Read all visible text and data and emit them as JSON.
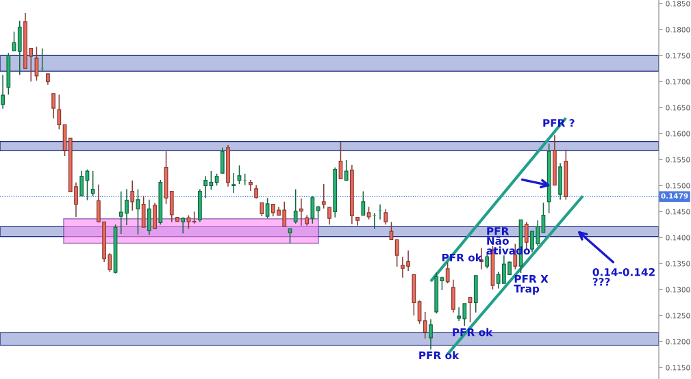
{
  "chart_data": {
    "type": "candlestick",
    "categories": [
      null,
      null,
      null,
      null,
      null,
      null,
      null,
      null,
      null,
      null,
      null,
      null,
      null,
      null,
      null,
      null,
      null,
      null,
      null,
      null,
      null,
      null,
      null,
      null,
      null,
      null,
      null,
      null,
      null,
      null,
      null,
      null,
      null,
      null,
      null,
      null,
      null,
      null,
      null,
      null,
      null,
      null,
      null,
      null,
      null,
      null,
      null,
      null,
      null,
      null,
      null,
      null,
      null,
      null,
      null,
      null,
      null,
      null,
      null,
      null,
      null,
      null,
      null,
      null,
      null,
      null,
      null,
      null,
      null,
      null,
      null,
      null,
      null,
      null,
      null,
      null,
      null,
      null,
      null,
      null,
      null,
      null,
      null,
      null,
      null,
      null,
      null,
      null,
      null,
      null,
      null,
      null,
      null,
      null,
      null,
      null,
      null,
      null,
      null,
      null,
      null,
      null,
      null,
      null,
      null,
      null,
      null,
      null,
      null,
      null,
      null,
      null,
      null,
      null,
      null,
      null,
      null
    ],
    "ohlc": [
      [
        0.1656,
        0.1713,
        0.1648,
        0.1674
      ],
      [
        0.1689,
        0.1755,
        0.1675,
        0.175
      ],
      [
        0.1759,
        0.1796,
        0.1759,
        0.1775
      ],
      [
        0.1758,
        0.1817,
        0.1713,
        0.1805
      ],
      [
        0.1815,
        0.1832,
        0.1725,
        0.1725
      ],
      [
        0.1764,
        0.1764,
        0.17,
        0.1749
      ],
      [
        0.1745,
        0.1767,
        0.1702,
        0.1711
      ],
      [
        0.1725,
        0.1764,
        0.1721,
        0.1725
      ],
      [
        0.1715,
        0.1715,
        0.1694,
        0.17
      ],
      [
        0.1677,
        0.1677,
        0.1629,
        0.1649
      ],
      [
        0.1646,
        0.1675,
        0.1608,
        0.1617
      ],
      [
        0.1617,
        0.1617,
        0.1557,
        0.1568
      ],
      [
        0.1591,
        0.1591,
        0.1488,
        0.1488
      ],
      [
        0.1498,
        0.1506,
        0.144,
        0.1464
      ],
      [
        0.148,
        0.1528,
        0.148,
        0.1518
      ],
      [
        0.151,
        0.1531,
        0.1472,
        0.1528
      ],
      [
        0.1485,
        0.1528,
        0.148,
        0.1493
      ],
      [
        0.1471,
        0.1502,
        0.1429,
        0.143
      ],
      [
        0.143,
        0.143,
        0.1353,
        0.1359
      ],
      [
        0.1367,
        0.137,
        0.1334,
        0.1338
      ],
      [
        0.1333,
        0.1425,
        0.1331,
        0.142
      ],
      [
        0.1441,
        0.1489,
        0.1407,
        0.1449
      ],
      [
        0.1447,
        0.1493,
        0.1424,
        0.1472
      ],
      [
        0.1489,
        0.151,
        0.1452,
        0.1469
      ],
      [
        0.1455,
        0.1493,
        0.1406,
        0.1473
      ],
      [
        0.1464,
        0.148,
        0.142,
        0.142
      ],
      [
        0.1413,
        0.1473,
        0.1405,
        0.1455
      ],
      [
        0.1462,
        0.1467,
        0.1417,
        0.1417
      ],
      [
        0.1429,
        0.1511,
        0.1425,
        0.1506
      ],
      [
        0.1535,
        0.1566,
        0.1465,
        0.1476
      ],
      [
        0.1489,
        0.1489,
        0.143,
        0.1444
      ],
      [
        0.1439,
        0.1439,
        0.1431,
        0.1431
      ],
      [
        0.143,
        0.1439,
        0.1408,
        0.1437
      ],
      [
        0.1438,
        0.1443,
        0.1417,
        0.143
      ],
      [
        0.1431,
        0.145,
        0.1427,
        0.143
      ],
      [
        0.1434,
        0.1493,
        0.143,
        0.1489
      ],
      [
        0.15,
        0.1518,
        0.1476,
        0.151
      ],
      [
        0.15,
        0.1528,
        0.1492,
        0.1506
      ],
      [
        0.1506,
        0.1523,
        0.15,
        0.1518
      ],
      [
        0.1524,
        0.1573,
        0.1523,
        0.1566
      ],
      [
        0.1573,
        0.1578,
        0.1498,
        0.1506
      ],
      [
        0.15,
        0.1524,
        0.1486,
        0.1502
      ],
      [
        0.151,
        0.1539,
        0.1503,
        0.1519
      ],
      [
        0.151,
        0.1523,
        0.1501,
        0.151
      ],
      [
        0.1506,
        0.1511,
        0.149,
        0.1502
      ],
      [
        0.1494,
        0.1501,
        0.1475,
        0.1477
      ],
      [
        0.1467,
        0.1467,
        0.1441,
        0.1446
      ],
      [
        0.1441,
        0.1476,
        0.1437,
        0.1465
      ],
      [
        0.1464,
        0.1464,
        0.1441,
        0.1448
      ],
      [
        0.1453,
        0.1459,
        0.1443,
        0.1443
      ],
      [
        0.1453,
        0.1469,
        0.1422,
        0.1422
      ],
      [
        0.1409,
        0.1417,
        0.1389,
        0.1417
      ],
      [
        0.143,
        0.1493,
        0.1427,
        0.1451
      ],
      [
        0.1455,
        0.1475,
        0.1423,
        0.1451
      ],
      [
        0.1438,
        0.1443,
        0.1423,
        0.1427
      ],
      [
        0.1437,
        0.148,
        0.1427,
        0.1477
      ],
      [
        0.1452,
        0.1461,
        0.1437,
        0.1459
      ],
      [
        0.1469,
        0.1503,
        0.1456,
        0.1464
      ],
      [
        0.1458,
        0.1458,
        0.1425,
        0.1437
      ],
      [
        0.145,
        0.1535,
        0.1439,
        0.1531
      ],
      [
        0.1547,
        0.1585,
        0.1513,
        0.1513
      ],
      [
        0.151,
        0.1549,
        0.151,
        0.1528
      ],
      [
        0.153,
        0.154,
        0.1426,
        0.1442
      ],
      [
        0.1439,
        0.1439,
        0.1423,
        0.1433
      ],
      [
        0.1443,
        0.1489,
        0.1443,
        0.1469
      ],
      [
        0.1448,
        0.1459,
        0.1435,
        0.144
      ],
      [
        0.1442,
        0.1447,
        0.1417,
        0.1442
      ],
      [
        0.1452,
        0.1464,
        0.1435,
        0.1452
      ],
      [
        0.1448,
        0.1455,
        0.1425,
        0.143
      ],
      [
        0.1412,
        0.143,
        0.1396,
        0.1396
      ],
      [
        0.1396,
        0.1396,
        0.1344,
        0.1366
      ],
      [
        0.1347,
        0.1363,
        0.1323,
        0.1341
      ],
      [
        0.1354,
        0.1375,
        0.1336,
        0.1345
      ],
      [
        0.1329,
        0.1329,
        0.125,
        0.1275
      ],
      [
        0.1277,
        0.1279,
        0.1234,
        0.124
      ],
      [
        0.124,
        0.1257,
        0.1206,
        0.1218
      ],
      [
        0.1207,
        0.1243,
        0.1185,
        0.1232
      ],
      [
        0.1257,
        0.1333,
        0.1254,
        0.1325
      ],
      [
        0.1317,
        0.1325,
        0.1299,
        0.1323
      ],
      [
        0.134,
        0.1352,
        0.1312,
        0.1315
      ],
      [
        0.1304,
        0.1319,
        0.1256,
        0.1262
      ],
      [
        0.1245,
        0.1266,
        0.124,
        0.1249
      ],
      [
        0.1244,
        0.1273,
        0.123,
        0.1273
      ],
      [
        0.1285,
        0.1286,
        0.1237,
        0.1275
      ],
      [
        0.1275,
        0.1327,
        0.1256,
        0.1327
      ],
      [
        0.1357,
        0.138,
        0.1339,
        0.1354
      ],
      [
        0.1345,
        0.1372,
        0.1341,
        0.1363
      ],
      [
        0.1375,
        0.1384,
        0.13,
        0.1308
      ],
      [
        0.1312,
        0.1334,
        0.1302,
        0.1329
      ],
      [
        0.1312,
        0.1366,
        0.1312,
        0.1349
      ],
      [
        0.1329,
        0.1354,
        0.1328,
        0.1353
      ],
      [
        0.1367,
        0.1388,
        0.1339,
        0.1345
      ],
      [
        0.1345,
        0.1434,
        0.1332,
        0.1434
      ],
      [
        0.1426,
        0.143,
        0.1376,
        0.1391
      ],
      [
        0.1378,
        0.1412,
        0.1372,
        0.1412
      ],
      [
        0.1388,
        0.1433,
        0.1384,
        0.1421
      ],
      [
        0.141,
        0.1467,
        0.141,
        0.1443
      ],
      [
        0.1469,
        0.1581,
        0.1447,
        0.1566
      ],
      [
        0.1568,
        0.1597,
        0.1501,
        0.1501
      ],
      [
        0.1483,
        0.1543,
        0.1473,
        0.1536
      ],
      [
        0.1547,
        0.1569,
        0.1473,
        0.1479
      ],
      null,
      null,
      null,
      null,
      null,
      null,
      null,
      null,
      null,
      null,
      null,
      null,
      null,
      null,
      null,
      null
    ],
    "colors": [
      "#26b574",
      "#26b574",
      "#26b574",
      "#26b574",
      "#ef6b5d",
      "#ef6b5d",
      "#ef6b5d",
      "#26b574",
      "#ef6b5d",
      "#ef6b5d",
      "#ef6b5d",
      "#ef6b5d",
      "#ef6b5d",
      "#ef6b5d",
      "#26b574",
      "#26b574",
      "#26b574",
      "#ef6b5d",
      "#ef6b5d",
      "#ef6b5d",
      "#26b574",
      "#26b574",
      "#26b574",
      "#ef6b5d",
      "#26b574",
      "#ef6b5d",
      "#26b574",
      "#ef6b5d",
      "#26b574",
      "#ef6b5d",
      "#ef6b5d",
      "#ef6b5d",
      "#26b574",
      "#ef6b5d",
      "#ef6b5d",
      "#26b574",
      "#26b574",
      "#26b574",
      "#26b574",
      "#26b574",
      "#ef6b5d",
      "#26b574",
      "#26b574",
      "#26b574",
      "#ef6b5d",
      "#ef6b5d",
      "#ef6b5d",
      "#26b574",
      "#ef6b5d",
      "#ef6b5d",
      "#ef6b5d",
      "#26b574",
      "#26b574",
      "#ef6b5d",
      "#ef6b5d",
      "#26b574",
      "#26b574",
      "#ef6b5d",
      "#ef6b5d",
      "#26b574",
      "#ef6b5d",
      "#26b574",
      "#ef6b5d",
      "#ef6b5d",
      "#26b574",
      "#ef6b5d",
      "#26b574",
      "#26b574",
      "#ef6b5d",
      "#ef6b5d",
      "#ef6b5d",
      "#ef6b5d",
      "#ef6b5d",
      "#ef6b5d",
      "#ef6b5d",
      "#ef6b5d",
      "#26b574",
      "#26b574",
      "#26b574",
      "#ef6b5d",
      "#ef6b5d",
      "#26b574",
      "#26b574",
      "#ef6b5d",
      "#26b574",
      "#ef6b5d",
      "#26b574",
      "#ef6b5d",
      "#26b574",
      "#26b574",
      "#26b574",
      "#ef6b5d",
      "#26b574",
      "#ef6b5d",
      "#26b574",
      "#26b574",
      "#26b574",
      "#26b574",
      "#ef6b5d",
      "#26b574",
      "#ef6b5d",
      null,
      null,
      null,
      null,
      null,
      null,
      null,
      null,
      null,
      null,
      null,
      null,
      null,
      null,
      null,
      null
    ],
    "series": [
      {
        "type": "line",
        "color": "#22a08a",
        "values": [
          null,
          null,
          null,
          null,
          null,
          null,
          null,
          null,
          null,
          null,
          null,
          null,
          null,
          null,
          null,
          null,
          null,
          null,
          null,
          null,
          null,
          null,
          null,
          null,
          null,
          null,
          null,
          null,
          null,
          null,
          null,
          null,
          null,
          null,
          null,
          null,
          null,
          null,
          null,
          null,
          null,
          null,
          null,
          null,
          null,
          null,
          null,
          null,
          null,
          null,
          null,
          null,
          null,
          null,
          null,
          null,
          null,
          null,
          null,
          null,
          null,
          null,
          null,
          null,
          null,
          null,
          null,
          null,
          null,
          null,
          null,
          null,
          null,
          null,
          null,
          null,
          0.1316,
          null,
          null,
          null,
          null,
          null,
          null,
          null,
          null,
          null,
          null,
          null,
          null,
          null,
          null,
          null,
          null,
          null,
          null,
          null,
          null,
          null,
          null,
          null,
          0.163,
          null,
          null,
          null,
          null,
          null,
          null,
          null,
          null,
          null,
          null,
          null,
          null,
          null,
          null,
          null,
          null
        ]
      },
      {
        "type": "line",
        "color": "#22a08a",
        "values": [
          null,
          null,
          null,
          null,
          null,
          null,
          null,
          null,
          null,
          null,
          null,
          null,
          null,
          null,
          null,
          null,
          null,
          null,
          null,
          null,
          null,
          null,
          null,
          null,
          null,
          null,
          null,
          null,
          null,
          null,
          null,
          null,
          null,
          null,
          null,
          null,
          null,
          null,
          null,
          null,
          null,
          null,
          null,
          null,
          null,
          null,
          null,
          null,
          null,
          null,
          null,
          null,
          null,
          null,
          null,
          null,
          null,
          null,
          null,
          null,
          null,
          null,
          null,
          null,
          null,
          null,
          null,
          null,
          null,
          null,
          null,
          null,
          null,
          null,
          null,
          null,
          null,
          null,
          null,
          0.1176,
          null,
          null,
          null,
          null,
          null,
          null,
          null,
          null,
          null,
          null,
          null,
          null,
          null,
          null,
          null,
          null,
          null,
          null,
          null,
          null,
          null,
          null,
          null,
          0.148,
          null,
          null,
          null,
          null,
          null,
          null,
          null,
          null,
          null,
          null,
          null,
          null,
          null
        ]
      }
    ],
    "ylim": [
      0.1128,
      0.1857
    ],
    "yticks": [
      {
        "value": 0.115,
        "label": "0.1150"
      },
      {
        "value": 0.12,
        "label": "0.1200"
      },
      {
        "value": 0.125,
        "label": "0.1250"
      },
      {
        "value": 0.13,
        "label": "0.1300"
      },
      {
        "value": 0.135,
        "label": "0.1350"
      },
      {
        "value": 0.14,
        "label": "0.1400"
      },
      {
        "value": 0.145,
        "label": "0.1450"
      },
      {
        "value": 0.15,
        "label": "0.1500"
      },
      {
        "value": 0.155,
        "label": "0.1550"
      },
      {
        "value": 0.16,
        "label": "0.1600"
      },
      {
        "value": 0.165,
        "label": "0.1650"
      },
      {
        "value": 0.17,
        "label": "0.1700"
      },
      {
        "value": 0.175,
        "label": "0.1750"
      },
      {
        "value": 0.18,
        "label": "0.1800"
      },
      {
        "value": 0.185,
        "label": "0.1850"
      }
    ],
    "tick_labels": "y",
    "bands": [
      {
        "axis": "y",
        "from": 0.172,
        "to": 0.175,
        "color": "#b7c0e2"
      },
      {
        "axis": "y",
        "from": 0.1567,
        "to": 0.1585,
        "color": "#b7c0e2"
      },
      {
        "axis": "y",
        "from": 0.1402,
        "to": 0.1421,
        "color": "#b7c0e2"
      },
      {
        "axis": "y",
        "from": 0.1193,
        "to": 0.1217,
        "color": "#b7c0e2"
      },
      {
        "axis": "y",
        "from": 0.1389,
        "to": 0.1436,
        "color": "#ff88f5"
      }
    ],
    "ref_lines": [
      {
        "axis": "y",
        "value": 0.1479,
        "label": "0.1479",
        "color": "#4a78e0",
        "line_style": "dotted"
      }
    ],
    "annotations": [
      "PFR ?",
      "PFR ok",
      "PFR\nNão\nativado",
      "PFR X\nTrap",
      "PFR ok",
      "PFR ok",
      "0.14-0.142\n???"
    ]
  }
}
